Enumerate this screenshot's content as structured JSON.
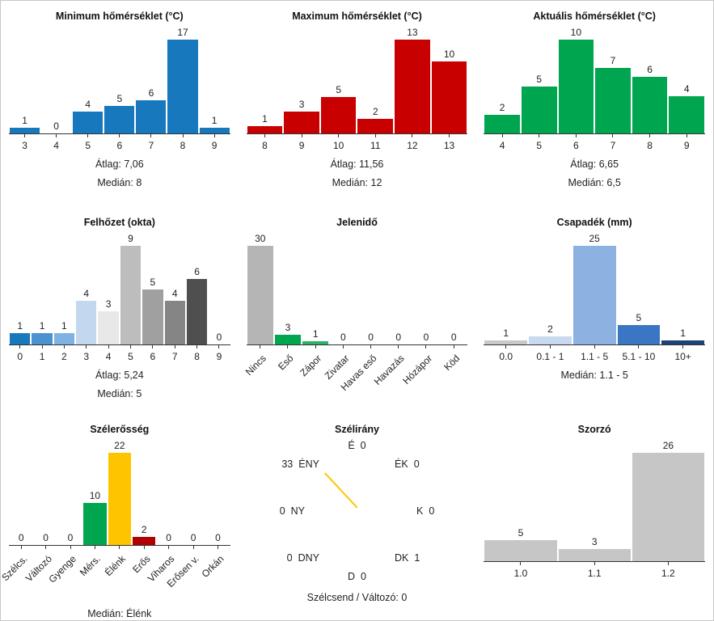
{
  "chart_data": [
    {
      "type": "bar",
      "title": "Minimum hőmérséklet (°C)",
      "categories": [
        "3",
        "4",
        "5",
        "6",
        "7",
        "8",
        "9"
      ],
      "values": [
        1,
        0,
        4,
        5,
        6,
        17,
        1
      ],
      "color": "#1878be",
      "ylim": [
        0,
        17
      ],
      "stats": [
        "Átlag: 7,06",
        "Medián: 8"
      ]
    },
    {
      "type": "bar",
      "title": "Maximum hőmérséklet (°C)",
      "categories": [
        "8",
        "9",
        "10",
        "11",
        "12",
        "13"
      ],
      "values": [
        1,
        3,
        5,
        2,
        13,
        10
      ],
      "color": "#c80000",
      "ylim": [
        0,
        13
      ],
      "stats": [
        "Átlag: 11,56",
        "Medián: 12"
      ]
    },
    {
      "type": "bar",
      "title": "Aktuális hőmérséklet (°C)",
      "categories": [
        "4",
        "5",
        "6",
        "7",
        "8",
        "9"
      ],
      "values": [
        2,
        5,
        10,
        7,
        6,
        4
      ],
      "color": "#00a550",
      "ylim": [
        0,
        10
      ],
      "stats": [
        "Átlag: 6,65",
        "Medián: 6,5"
      ]
    },
    {
      "type": "bar",
      "title": "Felhőzet (okta)",
      "categories": [
        "0",
        "1",
        "2",
        "3",
        "4",
        "5",
        "6",
        "7",
        "8",
        "9"
      ],
      "values": [
        1,
        1,
        1,
        4,
        3,
        9,
        5,
        4,
        6,
        0
      ],
      "colors": [
        "#1878be",
        "#4b92d0",
        "#7fb2e0",
        "#c3d8ef",
        "#e8e8e8",
        "#bdbdbd",
        "#a0a0a0",
        "#858585",
        "#4f4f4f",
        "#bdbdbd"
      ],
      "ylim": [
        0,
        9
      ],
      "stats": [
        "Átlag: 5,24",
        "Medián: 5"
      ]
    },
    {
      "type": "bar",
      "title": "Jelenidő",
      "categories": [
        "Nincs",
        "Eső",
        "Zápor",
        "Zivatar",
        "Havas eső",
        "Havazás",
        "Hózápor",
        "Köd"
      ],
      "values": [
        30,
        3,
        1,
        0,
        0,
        0,
        0,
        0
      ],
      "colors": [
        "#b5b5b5",
        "#00a550",
        "#2fb169",
        "#b5b5b5",
        "#b5b5b5",
        "#b5b5b5",
        "#b5b5b5",
        "#b5b5b5"
      ],
      "ylim": [
        0,
        30
      ],
      "stats": []
    },
    {
      "type": "bar",
      "title": "Csapadék (mm)",
      "categories": [
        "0.0",
        "0.1 - 1",
        "1.1 - 5",
        "5.1 - 10",
        "10+"
      ],
      "values": [
        1,
        2,
        25,
        5,
        1
      ],
      "colors": [
        "#c9c9c9",
        "#c9daf0",
        "#8db1e1",
        "#3a76c4",
        "#1d4277"
      ],
      "ylim": [
        0,
        25
      ],
      "stats": [
        "Medián: 1.1 - 5"
      ]
    },
    {
      "type": "bar",
      "title": "Szélerősség",
      "categories": [
        "Szélcs.",
        "Változó",
        "Gyenge",
        "Mérs.",
        "Élénk",
        "Erős",
        "Viharos",
        "Erősen v.",
        "Orkán"
      ],
      "values": [
        0,
        0,
        0,
        10,
        22,
        2,
        0,
        0,
        0
      ],
      "colors": [
        "#b5b5b5",
        "#b5b5b5",
        "#b5b5b5",
        "#00a550",
        "#ffc400",
        "#b00000",
        "#b5b5b5",
        "#b5b5b5",
        "#b5b5b5"
      ],
      "ylim": [
        0,
        22
      ],
      "stats": [
        "Medián: Élénk"
      ]
    },
    {
      "type": "compass",
      "title": "Szélirány",
      "directions": {
        "n": {
          "label": "É",
          "value": "0"
        },
        "ne": {
          "label": "ÉK",
          "value": "0"
        },
        "e": {
          "label": "K",
          "value": "0"
        },
        "se": {
          "label": "DK",
          "value": "1"
        },
        "s": {
          "label": "D",
          "value": "0"
        },
        "sw": {
          "label": "DNY",
          "value": "0"
        },
        "w": {
          "label": "NY",
          "value": "0"
        },
        "nw": {
          "label": "ÉNY",
          "value": "33"
        }
      },
      "needle": {
        "direction": "ÉNY",
        "value": 33,
        "color": "#ffc400"
      },
      "footer": "Szélcsend / Változó: 0"
    },
    {
      "type": "bar",
      "title": "Szorzó",
      "categories": [
        "1.0",
        "1.1",
        "1.2"
      ],
      "values": [
        5,
        3,
        26
      ],
      "color": "#c6c6c6",
      "ylim": [
        0,
        26
      ],
      "stats": []
    }
  ]
}
